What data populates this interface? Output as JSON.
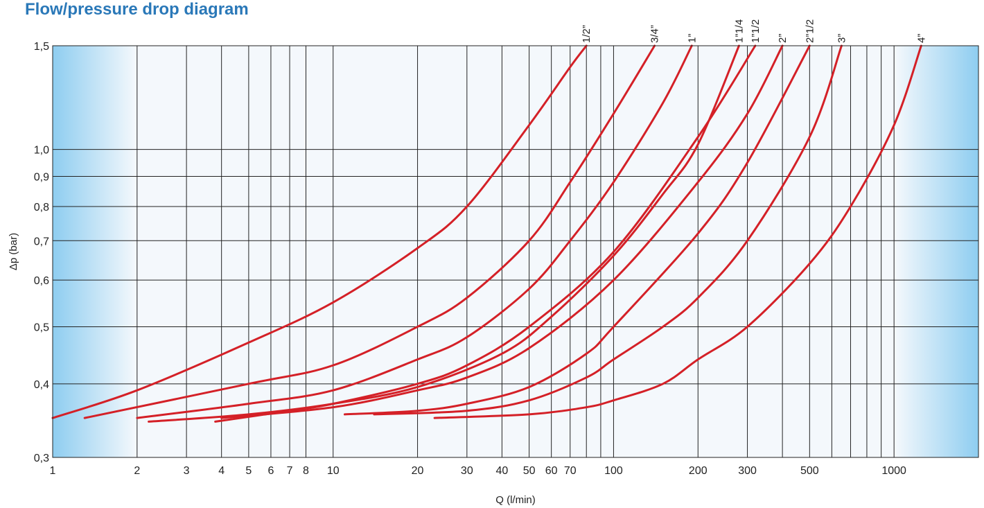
{
  "chart_data": {
    "type": "line",
    "title": "Flow/pressure drop diagram",
    "xlabel": "Q (l/min)",
    "ylabel": "Δp (bar)",
    "x_scale": "log",
    "y_scale": "log",
    "xlim": [
      1,
      2000
    ],
    "ylim": [
      0.3,
      1.5
    ],
    "grid": true,
    "x_ticks": [
      1,
      2,
      3,
      4,
      5,
      6,
      7,
      8,
      10,
      20,
      30,
      40,
      50,
      60,
      70,
      100,
      200,
      300,
      500,
      1000
    ],
    "x_tick_labels": [
      "1",
      "2",
      "3",
      "4",
      "5",
      "6",
      "7",
      "8",
      "10",
      "20",
      "30",
      "40",
      "50",
      "60",
      "70",
      "100",
      "200",
      "300",
      "500",
      "1000"
    ],
    "x_extra_gridlines": [
      80,
      90,
      400,
      600,
      700,
      800,
      900
    ],
    "y_ticks": [
      0.3,
      0.4,
      0.5,
      0.6,
      0.7,
      0.8,
      0.9,
      1.0,
      1.5
    ],
    "y_tick_labels": [
      "0,3",
      "0,4",
      "0,5",
      "0,6",
      "0,7",
      "0,8",
      "0,9",
      "1,0",
      "1,5"
    ],
    "line_color": "#d42027",
    "background_gradient_color": "#8ecdf0",
    "series": [
      {
        "name": "1/2”",
        "x": [
          1,
          2,
          5,
          10,
          20,
          30,
          50,
          70,
          80
        ],
        "y": [
          0.35,
          0.39,
          0.47,
          0.55,
          0.68,
          0.8,
          1.1,
          1.38,
          1.5
        ]
      },
      {
        "name": "3/4”",
        "x": [
          1.3,
          5,
          10,
          20,
          30,
          50,
          70,
          100,
          140
        ],
        "y": [
          0.35,
          0.4,
          0.43,
          0.5,
          0.56,
          0.7,
          0.88,
          1.15,
          1.5
        ]
      },
      {
        "name": "1”",
        "x": [
          2,
          5,
          10,
          20,
          30,
          50,
          70,
          100,
          150,
          190
        ],
        "y": [
          0.35,
          0.37,
          0.39,
          0.44,
          0.48,
          0.58,
          0.7,
          0.88,
          1.2,
          1.5
        ]
      },
      {
        "name": "1”1/4",
        "x": [
          2.2,
          5,
          10,
          20,
          40,
          60,
          100,
          150,
          200,
          280
        ],
        "y": [
          0.345,
          0.355,
          0.37,
          0.395,
          0.45,
          0.52,
          0.66,
          0.84,
          1.02,
          1.5
        ]
      },
      {
        "name": "1”1/2",
        "x": [
          3.8,
          7,
          10,
          20,
          30,
          50,
          100,
          200,
          320
        ],
        "y": [
          0.345,
          0.36,
          0.37,
          0.4,
          0.43,
          0.5,
          0.67,
          1.05,
          1.5
        ]
      },
      {
        "name": "2”",
        "x": [
          4,
          10,
          20,
          30,
          50,
          100,
          200,
          300,
          400
        ],
        "y": [
          0.35,
          0.365,
          0.39,
          0.41,
          0.46,
          0.6,
          0.88,
          1.15,
          1.5
        ]
      },
      {
        "name": "2”1/2",
        "x": [
          11,
          20,
          30,
          50,
          80,
          100,
          200,
          300,
          500
        ],
        "y": [
          0.355,
          0.36,
          0.37,
          0.395,
          0.45,
          0.5,
          0.72,
          0.95,
          1.5
        ]
      },
      {
        "name": "3”",
        "x": [
          14,
          30,
          50,
          80,
          100,
          150,
          200,
          300,
          500,
          650
        ],
        "y": [
          0.355,
          0.36,
          0.375,
          0.41,
          0.44,
          0.5,
          0.56,
          0.7,
          1.05,
          1.5
        ]
      },
      {
        "name": "4”",
        "x": [
          23,
          50,
          80,
          100,
          150,
          200,
          300,
          500,
          700,
          1000,
          1250
        ],
        "y": [
          0.35,
          0.355,
          0.365,
          0.375,
          0.4,
          0.44,
          0.5,
          0.64,
          0.8,
          1.1,
          1.5
        ]
      }
    ]
  }
}
